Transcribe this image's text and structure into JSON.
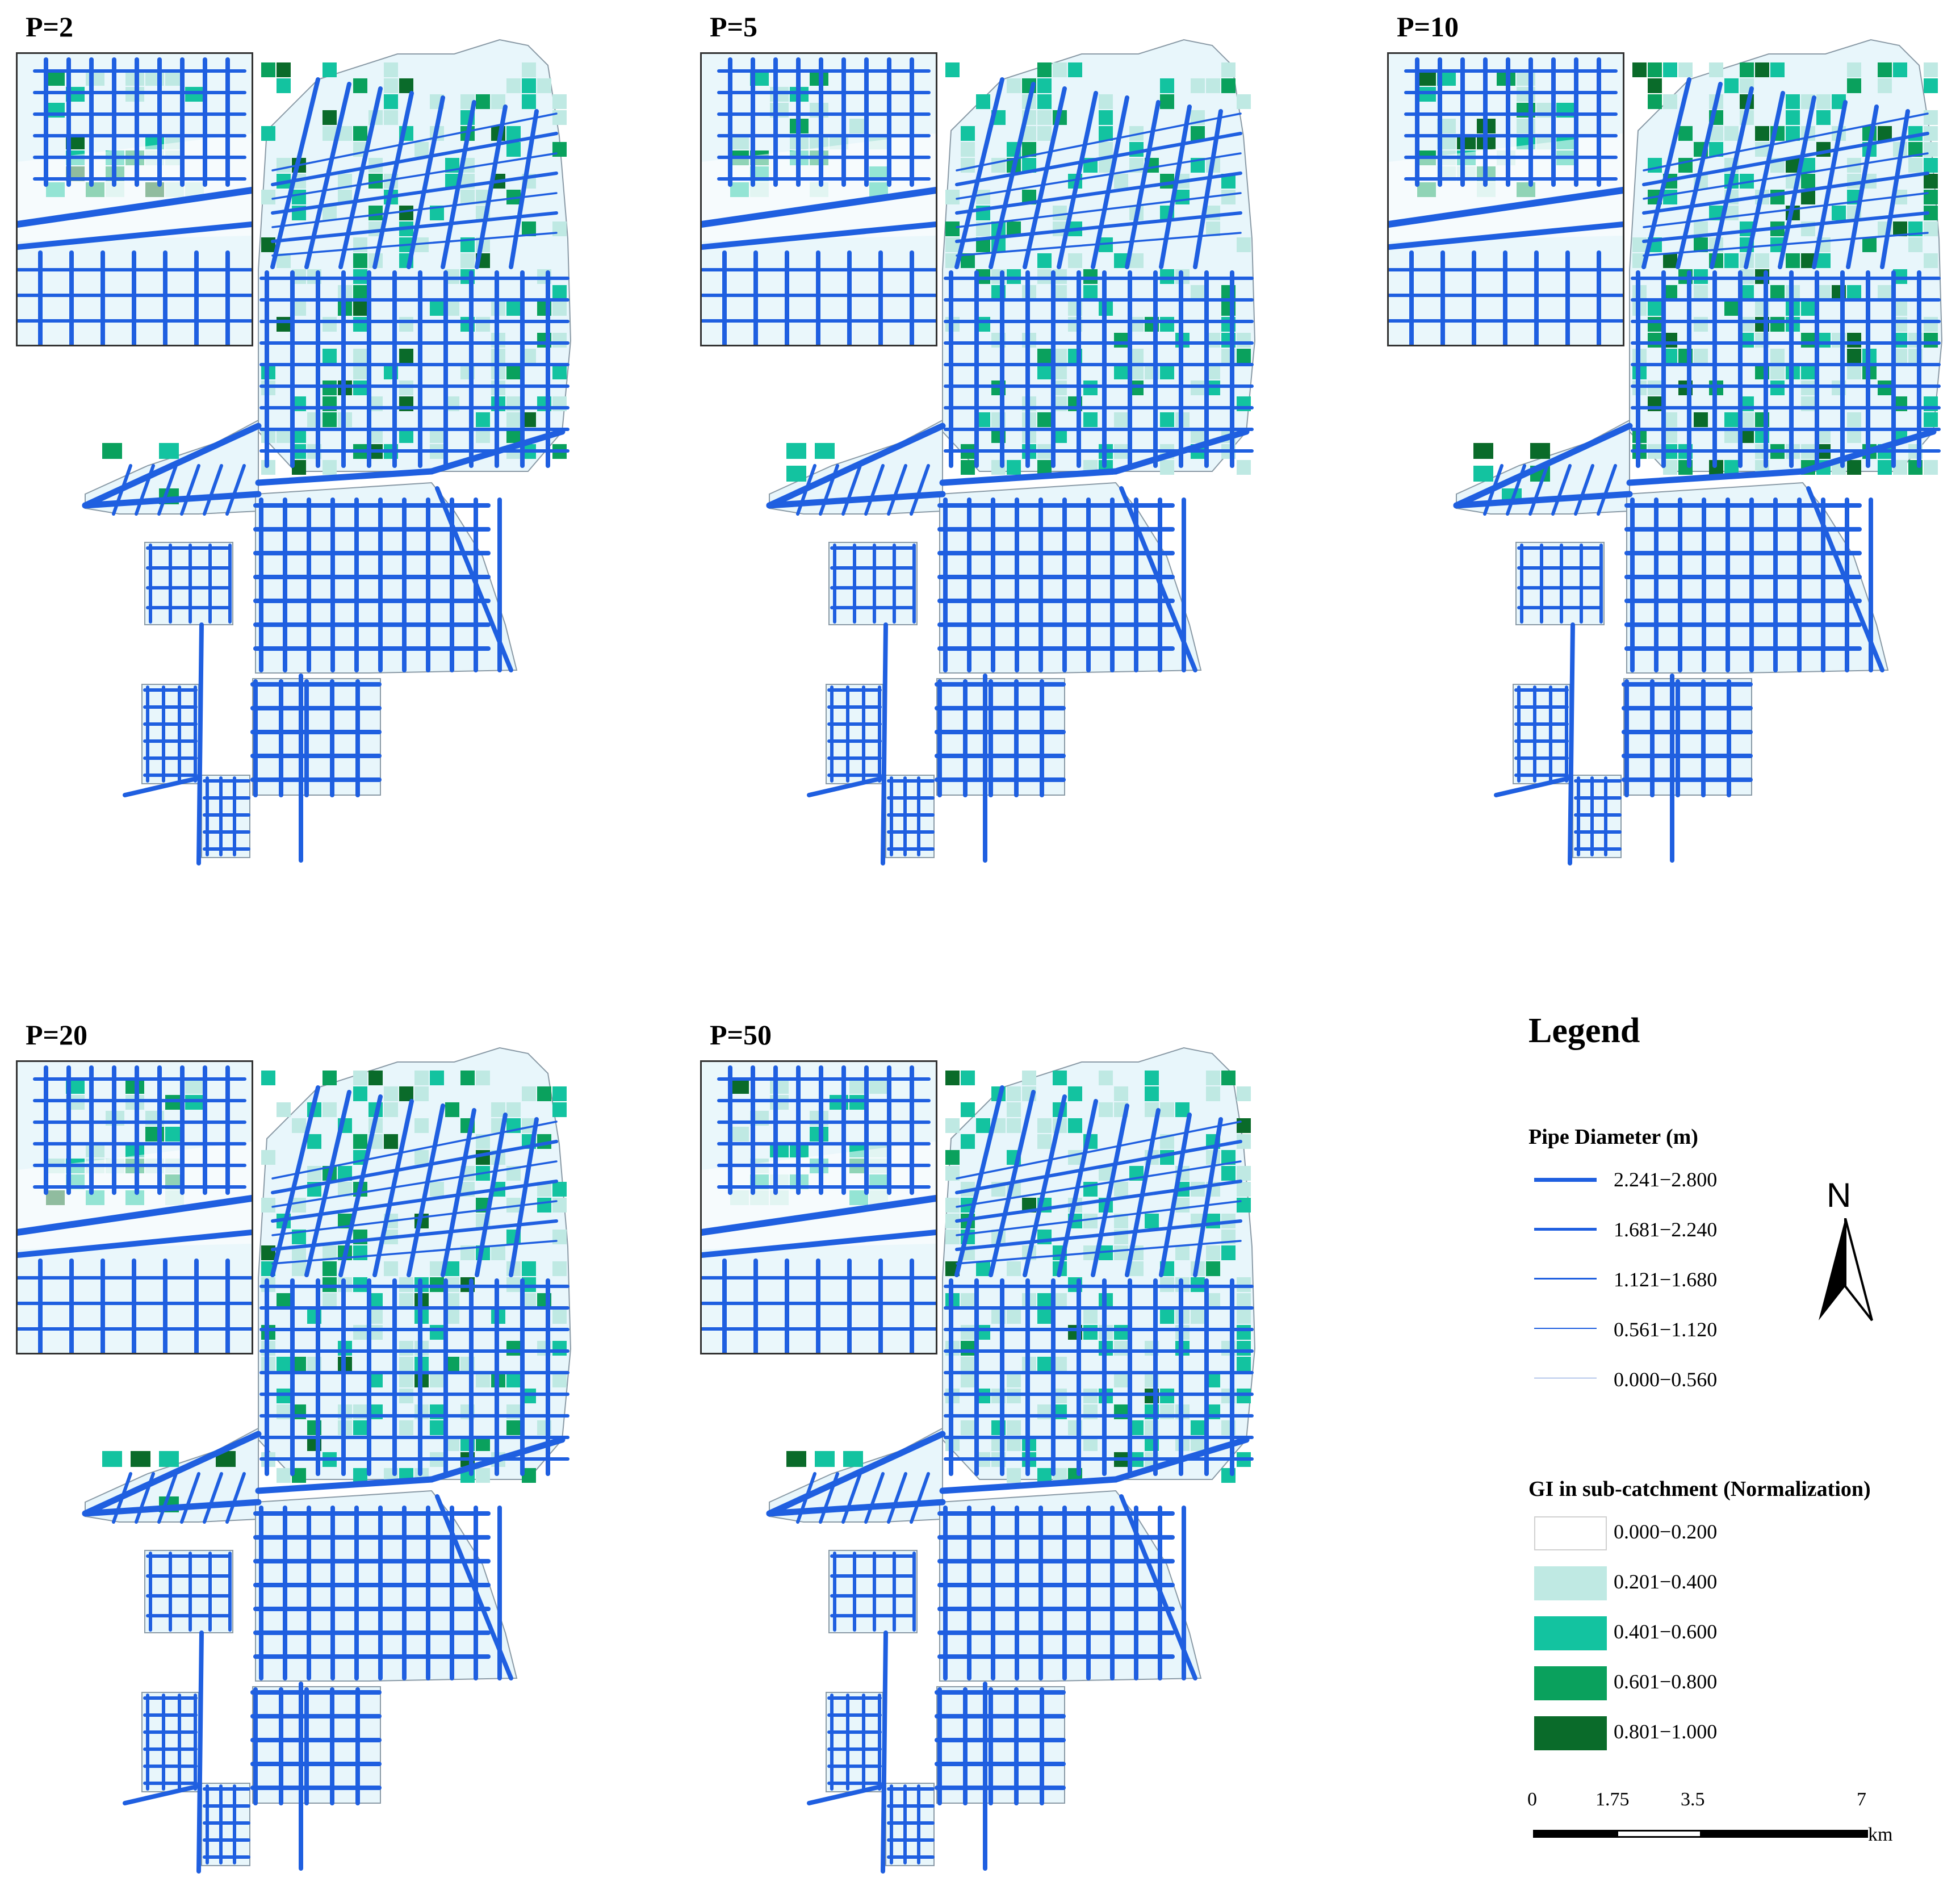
{
  "panels": [
    {
      "title": "P=2",
      "gi": [
        3,
        4,
        2,
        1,
        0,
        1,
        2,
        0,
        3,
        1,
        4,
        0,
        1,
        2,
        1,
        0,
        2,
        1,
        0,
        1,
        3,
        1,
        0,
        2,
        1,
        4,
        0,
        1,
        1,
        2,
        0,
        1,
        2,
        0,
        1,
        1,
        3,
        0,
        2,
        1
      ]
    },
    {
      "title": "P=5",
      "gi": [
        2,
        3,
        1,
        2,
        0,
        1,
        1,
        3,
        2,
        0,
        2,
        1,
        1,
        3,
        0,
        2,
        1,
        2,
        1,
        0,
        3,
        1,
        2,
        0,
        1,
        1,
        3,
        0,
        2,
        1,
        0,
        2,
        1,
        1,
        2,
        0,
        1,
        3,
        0,
        1
      ]
    },
    {
      "title": "P=10",
      "gi": [
        4,
        3,
        2,
        1,
        1,
        3,
        4,
        2,
        1,
        0,
        3,
        2,
        1,
        4,
        0,
        2,
        1,
        3,
        1,
        0,
        2,
        3,
        1,
        0,
        1,
        4,
        2,
        1,
        1,
        2,
        0,
        3,
        1,
        2,
        2,
        0,
        1,
        3,
        1,
        1
      ]
    },
    {
      "title": "P=20",
      "gi": [
        2,
        3,
        1,
        4,
        0,
        1,
        2,
        3,
        1,
        0,
        2,
        1,
        4,
        1,
        0,
        1,
        3,
        2,
        0,
        1,
        2,
        1,
        0,
        2,
        1,
        3,
        0,
        1,
        1,
        2,
        0,
        1,
        2,
        1,
        1,
        0,
        3,
        1,
        2,
        1
      ]
    },
    {
      "title": "P=50",
      "gi": [
        4,
        2,
        1,
        2,
        0,
        1,
        2,
        1,
        3,
        0,
        2,
        1,
        1,
        2,
        0,
        1,
        2,
        1,
        0,
        1,
        2,
        1,
        0,
        2,
        1,
        1,
        0,
        1,
        1,
        2,
        0,
        1,
        2,
        1,
        1,
        0,
        1,
        1,
        2,
        0
      ]
    }
  ],
  "legend": {
    "title": "Legend",
    "pipe_title": "Pipe Diameter (m)",
    "pipe_classes": [
      {
        "label": "2.241−2.800",
        "width_class": 5
      },
      {
        "label": "1.681−2.240",
        "width_class": 4
      },
      {
        "label": "1.121−1.680",
        "width_class": 3
      },
      {
        "label": "0.561−1.120",
        "width_class": 2
      },
      {
        "label": "0.000−0.560",
        "width_class": 1
      }
    ],
    "pipe_color": "#1f5fe0",
    "gi_title": "GI in sub-catchment (Normalization)",
    "gi_classes": [
      {
        "label": "0.000−0.200",
        "color": "#ffffff"
      },
      {
        "label": "0.201−0.400",
        "color": "#bfe9e3"
      },
      {
        "label": "0.401−0.600",
        "color": "#13c3a0"
      },
      {
        "label": "0.601−0.800",
        "color": "#0aa15d"
      },
      {
        "label": "0.801−1.000",
        "color": "#0a6b2a"
      }
    ]
  },
  "north_label": "N",
  "scalebar": {
    "ticks": [
      "0",
      "1.75",
      "3.5",
      "7"
    ],
    "unit": "km"
  }
}
